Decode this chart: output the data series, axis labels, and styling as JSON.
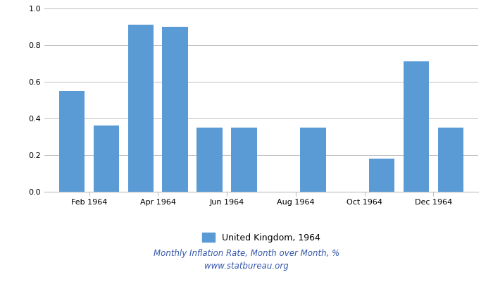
{
  "bar_positions": [
    1,
    2,
    3,
    4,
    5,
    6,
    8,
    10,
    11,
    12
  ],
  "bar_values": [
    0.55,
    0.36,
    0.91,
    0.9,
    0.35,
    0.35,
    0.35,
    0.18,
    0.71,
    0.35
  ],
  "tick_positions": [
    1.5,
    3.5,
    5.5,
    7.5,
    9.5,
    11.5
  ],
  "tick_labels": [
    "Feb 1964",
    "Apr 1964",
    "Jun 1964",
    "Aug 1964",
    "Oct 1964",
    "Dec 1964"
  ],
  "bar_color": "#5b9bd5",
  "ylim": [
    0,
    1.0
  ],
  "yticks": [
    0,
    0.2,
    0.4,
    0.6,
    0.8,
    1.0
  ],
  "legend_label": "United Kingdom, 1964",
  "subtitle": "Monthly Inflation Rate, Month over Month, %",
  "source": "www.statbureau.org",
  "background_color": "#ffffff",
  "grid_color": "#c0c0c0",
  "text_color": "#3355aa"
}
